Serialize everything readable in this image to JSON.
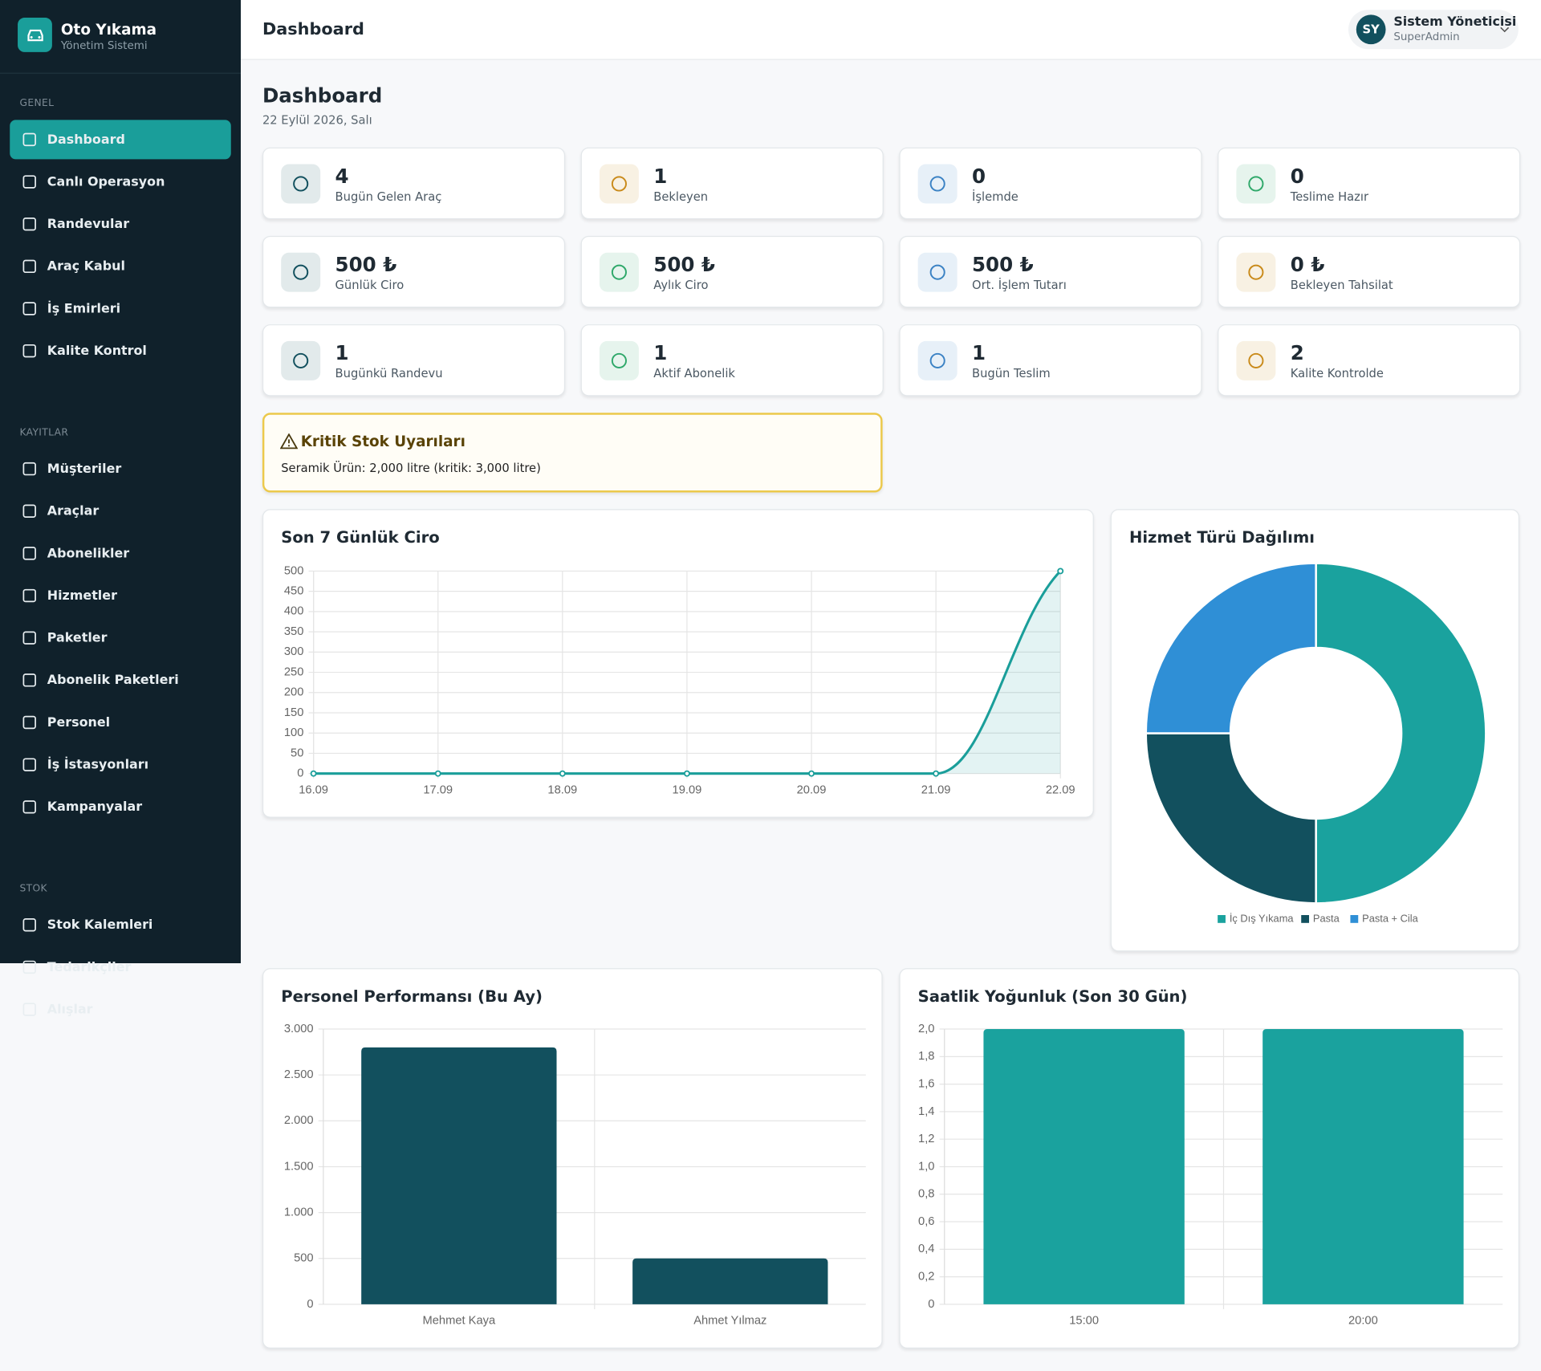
{
  "brand": {
    "name": "Oto Yıkama",
    "subtitle": "Yönetim Sistemi"
  },
  "sidebar": {
    "sections": [
      {
        "title": "GENEL",
        "items": [
          "Dashboard",
          "Canlı Operasyon",
          "Randevular",
          "Araç Kabul",
          "İş Emirleri",
          "Kalite Kontrol"
        ]
      },
      {
        "title": "KAYITLAR",
        "items": [
          "Müşteriler",
          "Araçlar",
          "Abonelikler",
          "Hizmetler",
          "Paketler",
          "Abonelik Paketleri",
          "Personel",
          "İş İstasyonları",
          "Kampanyalar"
        ]
      },
      {
        "title": "STOK",
        "items": [
          "Stok Kalemleri",
          "Tedarikçiler",
          "Alışlar"
        ]
      }
    ]
  },
  "header": {
    "title": "Dashboard",
    "user": {
      "initials": "SY",
      "name": "Sistem Yöneticisi",
      "role": "SuperAdmin"
    }
  },
  "page": {
    "title": "Dashboard",
    "date": "22 Eylül 2026, Salı"
  },
  "stats": [
    {
      "value": "4",
      "label": "Bugün Gelen Araç",
      "color": "#12505e"
    },
    {
      "value": "1",
      "label": "Bekleyen",
      "color": "#c98a1a"
    },
    {
      "value": "0",
      "label": "İşlemde",
      "color": "#3b82c4"
    },
    {
      "value": "0",
      "label": "Teslime Hazır",
      "color": "#2fa86a"
    },
    {
      "value": "500 ₺",
      "label": "Günlük Ciro",
      "color": "#12505e"
    },
    {
      "value": "500 ₺",
      "label": "Aylık Ciro",
      "color": "#2fa86a"
    },
    {
      "value": "500 ₺",
      "label": "Ort. İşlem Tutarı",
      "color": "#3b82c4"
    },
    {
      "value": "0 ₺",
      "label": "Bekleyen Tahsilat",
      "color": "#c98a1a"
    },
    {
      "value": "1",
      "label": "Bugünkü Randevu",
      "color": "#12505e"
    },
    {
      "value": "1",
      "label": "Aktif Abonelik",
      "color": "#2fa86a"
    },
    {
      "value": "1",
      "label": "Bugün Teslim",
      "color": "#3b82c4"
    },
    {
      "value": "2",
      "label": "Kalite Kontrolde",
      "color": "#c98a1a"
    }
  ],
  "alert": {
    "title": "Kritik Stok Uyarıları",
    "text": "Seramik Ürün: 2,000 litre (kritik: 3,000 litre)"
  },
  "chart_data": [
    {
      "type": "line",
      "title": "Son 7 Günlük Ciro",
      "categories": [
        "16.09",
        "17.09",
        "18.09",
        "19.09",
        "20.09",
        "21.09",
        "22.09"
      ],
      "values": [
        0,
        0,
        0,
        0,
        0,
        0,
        500
      ],
      "color": "#1a9e9a",
      "ylim": [
        0,
        500
      ],
      "yticks": [
        0,
        50,
        100,
        150,
        200,
        250,
        300,
        350,
        400,
        450,
        500
      ],
      "grid": true
    },
    {
      "type": "doughnut",
      "title": "Hizmet Türü Dağılımı",
      "categories": [
        "İç Dış Yıkama",
        "Pasta",
        "Pasta + Cila"
      ],
      "values": [
        50,
        25,
        25
      ],
      "colors": [
        "#1aa29e",
        "#12505e",
        "#2f8fd6"
      ]
    },
    {
      "type": "bar",
      "title": "Personel Performansı (Bu Ay)",
      "categories": [
        "Mehmet Kaya",
        "Ahmet Yılmaz"
      ],
      "values": [
        2800,
        500
      ],
      "color": "#12505e",
      "ylim": [
        0,
        3000
      ],
      "yticks": [
        0,
        500,
        {
          "value": 1000,
          "label": "1.000"
        },
        {
          "value": 1500,
          "label": "1.500"
        },
        {
          "value": 2000,
          "label": "2.000"
        },
        {
          "value": 2500,
          "label": "2.500"
        },
        {
          "value": 3000,
          "label": "3.000"
        }
      ],
      "grid": true
    },
    {
      "type": "bar",
      "title": "Saatlik Yoğunluk (Son 30 Gün)",
      "categories": [
        "15:00",
        "20:00"
      ],
      "values": [
        2,
        2
      ],
      "color": "#1aa29e",
      "ylim": [
        0,
        2
      ],
      "yticks": [
        0,
        {
          "value": 0.2,
          "label": "0,2"
        },
        {
          "value": 0.4,
          "label": "0,4"
        },
        {
          "value": 0.6,
          "label": "0,6"
        },
        {
          "value": 0.8,
          "label": "0,8"
        },
        {
          "value": 1,
          "label": "1,0"
        },
        {
          "value": 1.2,
          "label": "1,2"
        },
        {
          "value": 1.4,
          "label": "1,4"
        },
        {
          "value": 1.6,
          "label": "1,6"
        },
        {
          "value": 1.8,
          "label": "1,8"
        },
        {
          "value": 2,
          "label": "2,0"
        }
      ],
      "grid": true
    }
  ]
}
